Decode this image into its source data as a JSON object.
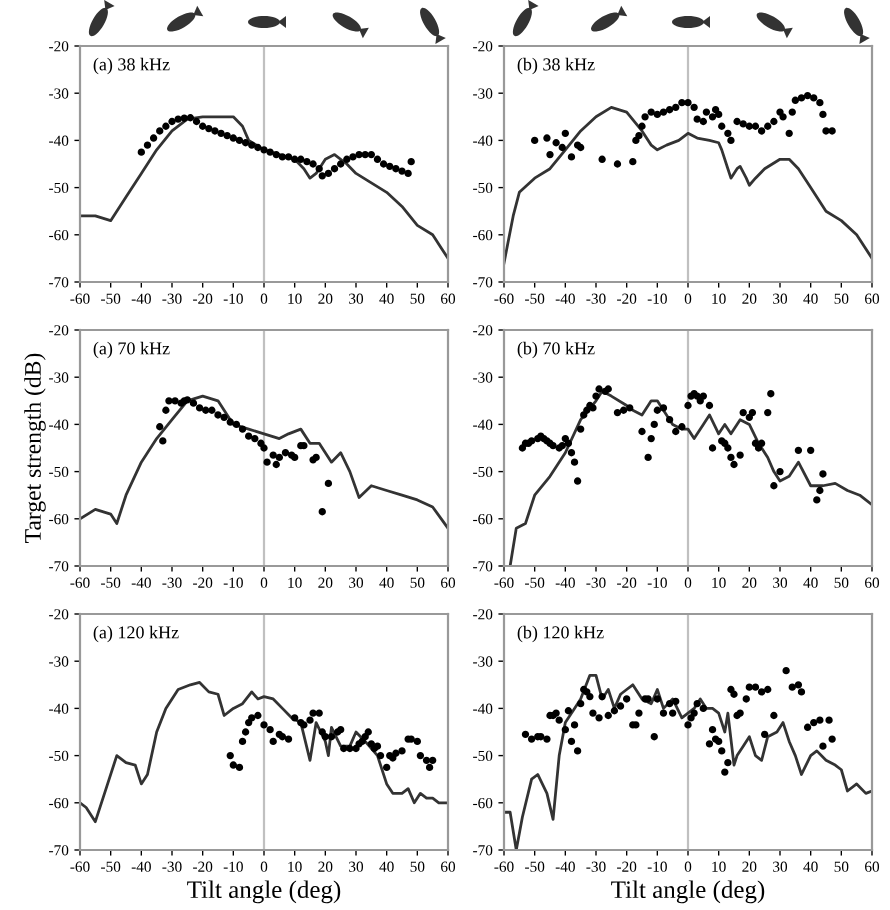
{
  "chart_data": [
    {
      "type": "line",
      "title": "(a) 38 kHz",
      "xlim": [
        -60,
        60
      ],
      "ylim": [
        -70,
        -20
      ],
      "xticks": [
        -60,
        -50,
        -40,
        -30,
        -20,
        -10,
        0,
        10,
        20,
        30,
        40,
        50,
        60
      ],
      "yticks": [
        -70,
        -60,
        -50,
        -40,
        -30,
        -20
      ],
      "ref_lines": [
        {
          "axis": "x",
          "value": 0,
          "color": "#c0c0c0"
        }
      ],
      "series": [
        {
          "color": "#333333",
          "marker": "none",
          "x": [
            -60,
            -55,
            -50,
            -45,
            -40,
            -35,
            -30,
            -25,
            -20,
            -15,
            -10,
            -7,
            -5,
            0,
            5,
            10,
            13,
            15,
            17,
            20,
            23,
            27,
            30,
            35,
            40,
            45,
            50,
            55,
            58,
            60
          ],
          "values": [
            -56,
            -56,
            -57,
            -52,
            -47,
            -42,
            -38,
            -35.5,
            -35,
            -35,
            -35,
            -37,
            -40,
            -42,
            -43,
            -44,
            -46,
            -48,
            -47,
            -44,
            -43,
            -45,
            -47,
            -49,
            -51,
            -54,
            -58,
            -60,
            -63,
            -65
          ]
        },
        {
          "type": "scatter",
          "color": "#000000",
          "marker": "circle",
          "x": [
            -40,
            -38,
            -36,
            -34,
            -32,
            -30,
            -28,
            -26,
            -24,
            -22,
            -20,
            -18,
            -16,
            -14,
            -12,
            -10,
            -8,
            -6,
            -4,
            -2,
            0,
            2,
            4,
            6,
            8,
            10,
            12,
            14,
            16,
            18,
            19,
            21,
            23,
            25,
            27,
            29,
            31,
            33,
            35,
            37,
            39,
            41,
            43,
            45,
            47,
            48
          ],
          "values": [
            -42.5,
            -41,
            -39.5,
            -38,
            -37,
            -36,
            -35.5,
            -35.3,
            -35.2,
            -36,
            -37,
            -37.5,
            -38,
            -38.5,
            -39,
            -39.5,
            -40,
            -40.5,
            -41,
            -41.5,
            -42,
            -42.5,
            -43,
            -43.5,
            -43.5,
            -44,
            -44,
            -44.5,
            -45,
            -46,
            -47.5,
            -47,
            -46,
            -45,
            -44,
            -43.5,
            -43,
            -43,
            -43,
            -44,
            -45,
            -45.5,
            -46,
            -46.5,
            -47,
            -44.5
          ]
        }
      ]
    },
    {
      "type": "line",
      "title": "(b) 38 kHz",
      "xlim": [
        -60,
        60
      ],
      "ylim": [
        -70,
        -20
      ],
      "xticks": [
        -60,
        -50,
        -40,
        -30,
        -20,
        -10,
        0,
        10,
        20,
        30,
        40,
        50,
        60
      ],
      "yticks": [
        -70,
        -60,
        -50,
        -40,
        -30,
        -20
      ],
      "ref_lines": [
        {
          "axis": "x",
          "value": 0,
          "color": "#c0c0c0"
        }
      ],
      "series": [
        {
          "color": "#333333",
          "marker": "none",
          "x": [
            -60,
            -57,
            -55,
            -50,
            -45,
            -40,
            -35,
            -30,
            -25,
            -20,
            -15,
            -12,
            -10,
            -7,
            -3,
            0,
            3,
            7,
            10,
            11,
            13,
            14,
            16,
            17,
            19,
            20,
            22,
            25,
            30,
            33,
            36,
            40,
            45,
            50,
            55,
            60
          ],
          "values": [
            -66,
            -56,
            -51,
            -48,
            -46,
            -42,
            -38,
            -35,
            -33,
            -34,
            -38,
            -41,
            -42,
            -41,
            -40,
            -38.5,
            -39.5,
            -40,
            -40.5,
            -42,
            -46,
            -48,
            -46,
            -45.5,
            -48,
            -49.5,
            -48,
            -46,
            -44,
            -44,
            -46,
            -50,
            -55,
            -57,
            -60,
            -65
          ]
        },
        {
          "type": "scatter",
          "color": "#000000",
          "marker": "circle",
          "x": [
            -50,
            -46,
            -45,
            -43,
            -41,
            -40,
            -38,
            -36,
            -35,
            -28,
            -23,
            -18,
            -17,
            -16,
            -15,
            -14,
            -12,
            -10,
            -8,
            -6,
            -4,
            -2,
            0,
            2,
            3,
            5,
            6,
            8,
            9,
            10,
            11,
            13,
            14,
            16,
            18,
            20,
            22,
            24,
            26,
            28,
            30,
            31,
            33,
            34,
            35,
            37,
            39,
            41,
            43,
            44,
            45,
            47
          ],
          "values": [
            -40,
            -39.5,
            -43,
            -40.5,
            -41.5,
            -38.5,
            -43.5,
            -41,
            -41.5,
            -44,
            -45,
            -44.5,
            -40,
            -39,
            -37,
            -35,
            -34,
            -34.5,
            -34,
            -33.5,
            -33,
            -32,
            -32,
            -33,
            -35.5,
            -36,
            -34,
            -35,
            -33.5,
            -34.5,
            -37,
            -38.5,
            -40,
            -36,
            -36.5,
            -37,
            -37,
            -38,
            -37,
            -36,
            -34,
            -35,
            -38.5,
            -34,
            -31.5,
            -31,
            -30.5,
            -31,
            -32,
            -34.5,
            -38,
            -38
          ]
        }
      ]
    },
    {
      "type": "line",
      "title": "(a) 70 kHz",
      "ylabel": "Target strength (dB)",
      "xlim": [
        -60,
        60
      ],
      "ylim": [
        -70,
        -20
      ],
      "xticks": [
        -60,
        -50,
        -40,
        -30,
        -20,
        -10,
        0,
        10,
        20,
        30,
        40,
        50,
        60
      ],
      "yticks": [
        -70,
        -60,
        -50,
        -40,
        -30,
        -20
      ],
      "ref_lines": [
        {
          "axis": "x",
          "value": 0,
          "color": "#c0c0c0"
        }
      ],
      "series": [
        {
          "color": "#333333",
          "marker": "none",
          "x": [
            -60,
            -55,
            -50,
            -48,
            -45,
            -40,
            -35,
            -30,
            -25,
            -20,
            -15,
            -13,
            -10,
            -5,
            0,
            5,
            8,
            12,
            15,
            18,
            22,
            25,
            28,
            31,
            35,
            40,
            45,
            50,
            55,
            60
          ],
          "values": [
            -60,
            -58,
            -59,
            -61,
            -55,
            -48,
            -43,
            -39,
            -35,
            -34,
            -35,
            -37,
            -40,
            -41,
            -42,
            -43,
            -42,
            -41,
            -44,
            -44,
            -48,
            -46,
            -50,
            -55.5,
            -53,
            -54,
            -55,
            -56,
            -57.5,
            -62
          ]
        },
        {
          "type": "scatter",
          "color": "#000000",
          "marker": "circle",
          "x": [
            -34,
            -33,
            -32,
            -31,
            -29,
            -27,
            -26,
            -25,
            -23,
            -21,
            -19,
            -17,
            -15,
            -13,
            -11,
            -9,
            -7,
            -5,
            -3,
            -1,
            0,
            1,
            3,
            4,
            5,
            7,
            9,
            10,
            12,
            13,
            16,
            17,
            19,
            21
          ],
          "values": [
            -40.5,
            -43.5,
            -37,
            -35,
            -35,
            -35.5,
            -35,
            -34.8,
            -35.5,
            -36.5,
            -37,
            -37,
            -38,
            -38.5,
            -39.5,
            -40,
            -41,
            -42.5,
            -43,
            -44,
            -45,
            -48,
            -46.5,
            -48.5,
            -47,
            -46,
            -46.5,
            -47,
            -44.5,
            -44.5,
            -47.5,
            -47,
            -58.5,
            -52.5
          ]
        }
      ]
    },
    {
      "type": "line",
      "title": "(b) 70 kHz",
      "xlim": [
        -60,
        60
      ],
      "ylim": [
        -70,
        -20
      ],
      "xticks": [
        -60,
        -50,
        -40,
        -30,
        -20,
        -10,
        0,
        10,
        20,
        30,
        40,
        50,
        60
      ],
      "yticks": [
        -70,
        -60,
        -50,
        -40,
        -30,
        -20
      ],
      "ref_lines": [
        {
          "axis": "x",
          "value": 0,
          "color": "#c0c0c0"
        }
      ],
      "series": [
        {
          "color": "#333333",
          "marker": "none",
          "x": [
            -58,
            -56,
            -53,
            -50,
            -45,
            -40,
            -35,
            -30,
            -28,
            -25,
            -20,
            -18,
            -15,
            -12,
            -10,
            -7,
            -5,
            -2,
            0,
            2,
            5,
            7,
            10,
            12,
            14,
            17,
            20,
            23,
            26,
            28,
            30,
            33,
            36,
            40,
            44,
            48,
            52,
            56,
            60
          ],
          "values": [
            -70,
            -62,
            -61,
            -55,
            -51,
            -46,
            -39,
            -35,
            -33,
            -34,
            -36,
            -37,
            -38,
            -35,
            -35,
            -38,
            -40,
            -41,
            -41,
            -43,
            -40,
            -38,
            -42,
            -40,
            -42,
            -39,
            -40,
            -44,
            -47,
            -50,
            -52,
            -51,
            -48,
            -53,
            -53,
            -52.5,
            -54,
            -55,
            -57
          ]
        },
        {
          "type": "scatter",
          "color": "#000000",
          "marker": "circle",
          "x": [
            -54,
            -53,
            -52,
            -51,
            -49,
            -48,
            -47,
            -46,
            -45,
            -44,
            -42,
            -41,
            -40,
            -39,
            -38,
            -37,
            -36,
            -35,
            -34,
            -33,
            -32,
            -31,
            -30,
            -29,
            -27,
            -26,
            -23,
            -21,
            -19,
            -15,
            -13,
            -12,
            -11,
            -10,
            -8,
            -6,
            -4,
            -2,
            0,
            1,
            2,
            3,
            4,
            5,
            7,
            8,
            11,
            12,
            13,
            14,
            15,
            17,
            18,
            20,
            21,
            22,
            23,
            24,
            26,
            27,
            28,
            30,
            36,
            40,
            42,
            43,
            44
          ],
          "values": [
            -45,
            -44,
            -44,
            -43.5,
            -43,
            -42.5,
            -43,
            -43.5,
            -44,
            -44.5,
            -45,
            -44.5,
            -43,
            -44,
            -46,
            -48,
            -52,
            -41,
            -38,
            -37,
            -36,
            -36.5,
            -34,
            -32.5,
            -33,
            -32.5,
            -37.5,
            -37,
            -36.5,
            -41.5,
            -47,
            -43,
            -40,
            -37,
            -36.5,
            -39,
            -41.5,
            -40.5,
            -36,
            -34,
            -33.5,
            -34,
            -35,
            -34,
            -36,
            -45,
            -43.5,
            -44,
            -45,
            -47,
            -48.5,
            -46.5,
            -37.5,
            -38.5,
            -37.5,
            -44,
            -45,
            -44,
            -37.5,
            -33.5,
            -53,
            -50,
            -45.5,
            -45.5,
            -56,
            -54,
            -50.5
          ]
        }
      ]
    },
    {
      "type": "line",
      "title": "(a) 120 kHz",
      "xlabel": "Tilt angle (deg)",
      "xlim": [
        -60,
        60
      ],
      "ylim": [
        -70,
        -20
      ],
      "xticks": [
        -60,
        -50,
        -40,
        -30,
        -20,
        -10,
        0,
        10,
        20,
        30,
        40,
        50,
        60
      ],
      "yticks": [
        -70,
        -60,
        -50,
        -40,
        -30,
        -20
      ],
      "ref_lines": [
        {
          "axis": "x",
          "value": 0,
          "color": "#c0c0c0"
        }
      ],
      "series": [
        {
          "color": "#333333",
          "marker": "none",
          "x": [
            -60,
            -58,
            -55,
            -52,
            -48,
            -45,
            -42,
            -40,
            -38,
            -35,
            -32,
            -28,
            -24,
            -21,
            -18,
            -15,
            -13,
            -10,
            -7,
            -4,
            -2,
            0,
            3,
            6,
            9,
            12,
            15,
            17,
            20,
            21,
            22,
            25,
            28,
            30,
            33,
            37,
            40,
            42,
            45,
            47,
            49,
            51,
            53,
            55,
            57,
            60
          ],
          "values": [
            -60,
            -61,
            -64,
            -58,
            -50,
            -51.5,
            -52,
            -56,
            -54,
            -45,
            -40,
            -36,
            -35,
            -34.5,
            -36.5,
            -37,
            -41.5,
            -40,
            -39,
            -36.5,
            -38,
            -37.5,
            -38,
            -40,
            -42,
            -43,
            -51,
            -43,
            -47,
            -50,
            -44,
            -48,
            -48,
            -45,
            -47,
            -50,
            -56,
            -58,
            -58,
            -57,
            -60,
            -58,
            -59,
            -59,
            -60,
            -60
          ]
        },
        {
          "type": "scatter",
          "color": "#000000",
          "marker": "circle",
          "x": [
            -11,
            -10,
            -8,
            -7,
            -6,
            -5,
            -4,
            -2,
            0,
            2,
            3,
            5,
            6,
            8,
            10,
            12,
            13,
            15,
            16,
            18,
            19,
            20,
            22,
            24,
            25,
            26,
            28,
            30,
            31,
            32,
            33,
            34,
            35,
            36,
            37,
            38,
            40,
            41,
            42,
            43,
            45,
            47,
            48,
            50,
            51,
            53,
            54,
            55
          ],
          "values": [
            -50,
            -52,
            -52.5,
            -47,
            -45,
            -43,
            -42,
            -41.5,
            -43.5,
            -44.5,
            -47,
            -45.5,
            -46,
            -46.5,
            -42,
            -43,
            -43.5,
            -42.5,
            -41,
            -41,
            -45,
            -46,
            -46,
            -45,
            -44.5,
            -48.5,
            -48.5,
            -48.5,
            -47.5,
            -47,
            -46,
            -45,
            -47.5,
            -48.5,
            -48,
            -50,
            -52.5,
            -50,
            -50.5,
            -49.5,
            -49,
            -46.5,
            -46.5,
            -47,
            -50,
            -51,
            -52.5,
            -51
          ]
        }
      ]
    },
    {
      "type": "line",
      "title": "(b) 120 kHz",
      "xlabel": "Tilt angle (deg)",
      "xlim": [
        -60,
        60
      ],
      "ylim": [
        -70,
        -20
      ],
      "xticks": [
        -60,
        -50,
        -40,
        -30,
        -20,
        -10,
        0,
        10,
        20,
        30,
        40,
        50,
        60
      ],
      "yticks": [
        -70,
        -60,
        -50,
        -40,
        -30,
        -20
      ],
      "ref_lines": [
        {
          "axis": "x",
          "value": 0,
          "color": "#c0c0c0"
        }
      ],
      "series": [
        {
          "color": "#333333",
          "marker": "none",
          "x": [
            -60,
            -58,
            -56,
            -54,
            -51,
            -49,
            -46,
            -44,
            -42,
            -40,
            -37,
            -35,
            -32,
            -30,
            -28,
            -26,
            -24,
            -22,
            -20,
            -18,
            -15,
            -12,
            -10,
            -8,
            -5,
            -2,
            0,
            2,
            4,
            6,
            8,
            10,
            12,
            13,
            15,
            16,
            18,
            20,
            22,
            24,
            26,
            29,
            31,
            33,
            35,
            37,
            40,
            42,
            45,
            48,
            50,
            52,
            55,
            58,
            60
          ],
          "values": [
            -62,
            -62,
            -70,
            -63,
            -55,
            -54,
            -58,
            -63.5,
            -50,
            -43,
            -40,
            -38,
            -33,
            -33,
            -38,
            -36,
            -40,
            -37,
            -36,
            -35,
            -38,
            -39,
            -36,
            -40,
            -38,
            -42,
            -41,
            -40,
            -38,
            -40,
            -40,
            -41,
            -45,
            -41,
            -52,
            -50,
            -48,
            -46,
            -50,
            -51,
            -46,
            -45,
            -43,
            -47,
            -50,
            -54,
            -50,
            -49,
            -51,
            -52,
            -53,
            -57.5,
            -56,
            -58,
            -57.5
          ]
        },
        {
          "type": "scatter",
          "color": "#000000",
          "marker": "circle",
          "x": [
            -53,
            -51,
            -49,
            -48,
            -46,
            -45,
            -44,
            -43,
            -42,
            -40,
            -39,
            -38,
            -37,
            -36,
            -35,
            -34,
            -33,
            -32,
            -31,
            -29,
            -28,
            -26,
            -24,
            -22,
            -20,
            -18,
            -17,
            -16,
            -14,
            -13,
            -11,
            -10,
            -8,
            -6,
            -5,
            -4,
            0,
            1,
            2,
            3,
            5,
            7,
            8,
            9,
            10,
            11,
            12,
            13,
            14,
            15,
            16,
            17,
            19,
            20,
            22,
            24,
            25,
            26,
            28,
            32,
            34,
            36,
            37,
            39,
            41,
            43,
            44,
            46,
            47
          ],
          "values": [
            -45.5,
            -46.5,
            -46,
            -46,
            -46.5,
            -41.5,
            -41.5,
            -41,
            -42.5,
            -44.5,
            -40.5,
            -47,
            -43.5,
            -49,
            -39,
            -36,
            -36.5,
            -37.5,
            -41,
            -42,
            -37.5,
            -41.5,
            -40.5,
            -39.5,
            -38,
            -43.5,
            -43.5,
            -41,
            -38,
            -38,
            -46,
            -38,
            -41,
            -39,
            -41,
            -38.5,
            -43.5,
            -42,
            -41,
            -39,
            -40,
            -47.5,
            -44.5,
            -46.5,
            -47,
            -49,
            -53.5,
            -51.5,
            -36,
            -37,
            -41.5,
            -41,
            -38,
            -35.5,
            -35.5,
            -36.5,
            -45.5,
            -36,
            -41.5,
            -32,
            -35.5,
            -35,
            -36.5,
            -44,
            -43,
            -42.5,
            -48,
            -42.5,
            -46.5
          ]
        }
      ]
    }
  ]
}
